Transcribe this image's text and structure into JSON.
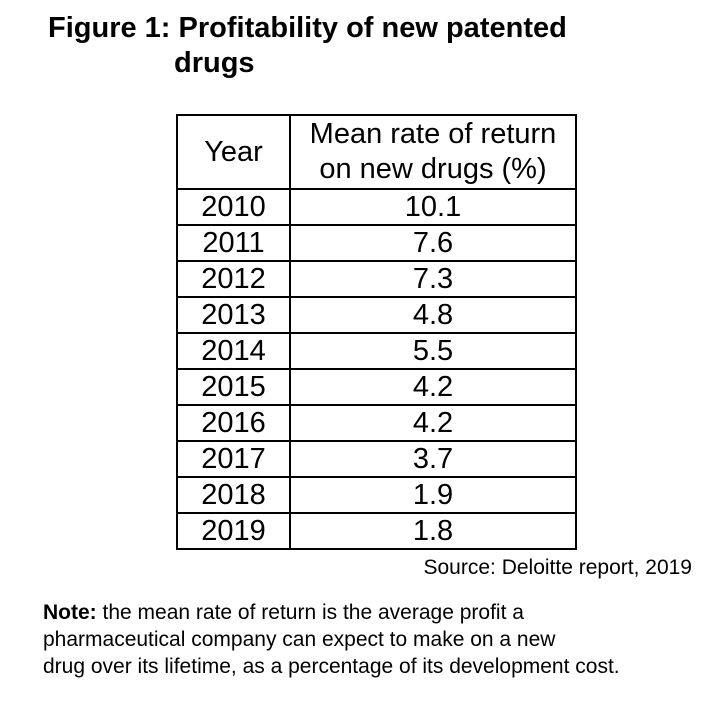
{
  "figure_title": {
    "line1": "Figure 1: Profitability of new patented",
    "line2": "drugs"
  },
  "table": {
    "header": {
      "year": "Year",
      "value_line1": "Mean rate of return",
      "value_line2": "on new drugs (%)"
    },
    "rows": [
      {
        "year": "2010",
        "value": "10.1"
      },
      {
        "year": "2011",
        "value": "7.6"
      },
      {
        "year": "2012",
        "value": "7.3"
      },
      {
        "year": "2013",
        "value": "4.8"
      },
      {
        "year": "2014",
        "value": "5.5"
      },
      {
        "year": "2015",
        "value": "4.2"
      },
      {
        "year": "2016",
        "value": "4.2"
      },
      {
        "year": "2017",
        "value": "3.7"
      },
      {
        "year": "2018",
        "value": "1.9"
      },
      {
        "year": "2019",
        "value": "1.8"
      }
    ]
  },
  "source": "Source: Deloitte report, 2019",
  "note": {
    "label": "Note:",
    "line1": " the mean rate of return is the average profit a",
    "line2": "pharmaceutical company can expect to make on a new",
    "line3": "drug over its lifetime, as a percentage of its development cost."
  },
  "colors": {
    "text": "#000000",
    "background": "#ffffff",
    "table_border": "#000000"
  },
  "chart_data": {
    "type": "table",
    "title": "Figure 1: Profitability of new patented drugs",
    "columns": [
      "Year",
      "Mean rate of return on new drugs (%)"
    ],
    "years": [
      2010,
      2011,
      2012,
      2013,
      2014,
      2015,
      2016,
      2017,
      2018,
      2019
    ],
    "values": [
      10.1,
      7.6,
      7.3,
      4.8,
      5.5,
      4.2,
      4.2,
      3.7,
      1.9,
      1.8
    ],
    "source": "Source: Deloitte report, 2019",
    "note": "Note: the mean rate of return is the average profit a pharmaceutical company can expect to make on a new drug over its lifetime, as a percentage of its development cost."
  }
}
